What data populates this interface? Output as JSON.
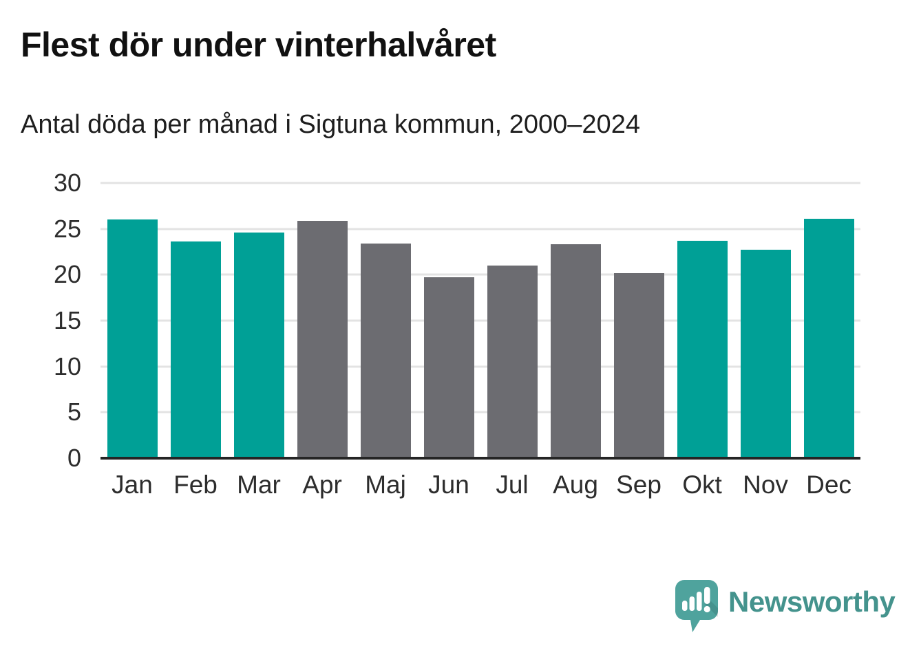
{
  "header": {
    "title": "Flest dör under vinterhalvåret",
    "subtitle": "Antal döda per månad i Sigtuna kommun, 2000–2024"
  },
  "chart_data": {
    "type": "bar",
    "title": "Flest dör under vinterhalvåret",
    "subtitle": "Antal döda per månad i Sigtuna kommun, 2000–2024",
    "categories": [
      "Jan",
      "Feb",
      "Mar",
      "Apr",
      "Maj",
      "Jun",
      "Jul",
      "Aug",
      "Sep",
      "Okt",
      "Nov",
      "Dec"
    ],
    "values": [
      26.0,
      23.6,
      24.6,
      25.9,
      23.4,
      19.7,
      21.0,
      23.3,
      20.2,
      23.7,
      22.7,
      26.1
    ],
    "bar_colors": [
      "#00A096",
      "#00A096",
      "#00A096",
      "#6C6C71",
      "#6C6C71",
      "#6C6C71",
      "#6C6C71",
      "#6C6C71",
      "#6C6C71",
      "#00A096",
      "#00A096",
      "#00A096"
    ],
    "highlight_color": "#00A096",
    "muted_color": "#6C6C71",
    "yticks": [
      0,
      5,
      10,
      15,
      20,
      25,
      30
    ],
    "ylim": [
      0,
      30
    ],
    "grid": true,
    "legend": "none",
    "xlabel": "",
    "ylabel": ""
  },
  "footer": {
    "brand": "Newsworthy",
    "brand_color": "#44938D",
    "logo_color": "#4FA39D",
    "logo_icon": "newsworthy-speech-bubble-bar-chart-icon"
  }
}
